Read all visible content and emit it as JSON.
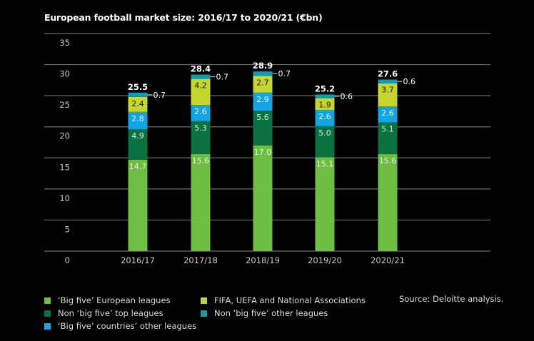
{
  "chart_data": {
    "type": "bar",
    "stacked": true,
    "title": "European football market size: 2016/17 to 2020/21 (€bn)",
    "xlabel": "",
    "ylabel": "",
    "ylim": [
      0,
      35
    ],
    "yticks": [
      0,
      5,
      10,
      15,
      20,
      25,
      30,
      35
    ],
    "grid": true,
    "categories": [
      "2016/17",
      "2017/18",
      "2018/19",
      "2019/20",
      "2020/21"
    ],
    "series": [
      {
        "name": "‘Big five’ European leagues",
        "color": "#6fbe44",
        "label_color": "#e8f5dc",
        "values": [
          14.7,
          15.6,
          17.0,
          15.1,
          15.6
        ]
      },
      {
        "name": "Non ‘big five’ top leagues",
        "color": "#0b7140",
        "label_color": "#d6eee0",
        "values": [
          4.9,
          5.3,
          5.6,
          5.0,
          5.1
        ]
      },
      {
        "name": "‘Big five’ countries’ other leagues",
        "color": "#12a5e0",
        "label_color": "#e6f6fd",
        "values": [
          2.8,
          2.6,
          2.9,
          2.6,
          2.6
        ]
      },
      {
        "name": "FIFA, UEFA and National Associations",
        "color": "#c5d72f",
        "label_color": "#1a1a1a",
        "values": [
          2.4,
          4.2,
          2.7,
          1.9,
          3.7
        ]
      },
      {
        "name": "Non ‘big five’ other leagues",
        "color": "#109bb5",
        "label_color": "#ffffff",
        "values": [
          0.7,
          0.7,
          0.7,
          0.6,
          0.6
        ]
      }
    ],
    "totals": [
      "25.5",
      "28.4",
      "28.9",
      "25.2",
      "27.6"
    ],
    "legend_position": "bottom",
    "source": "Source: Deloitte analysis."
  }
}
